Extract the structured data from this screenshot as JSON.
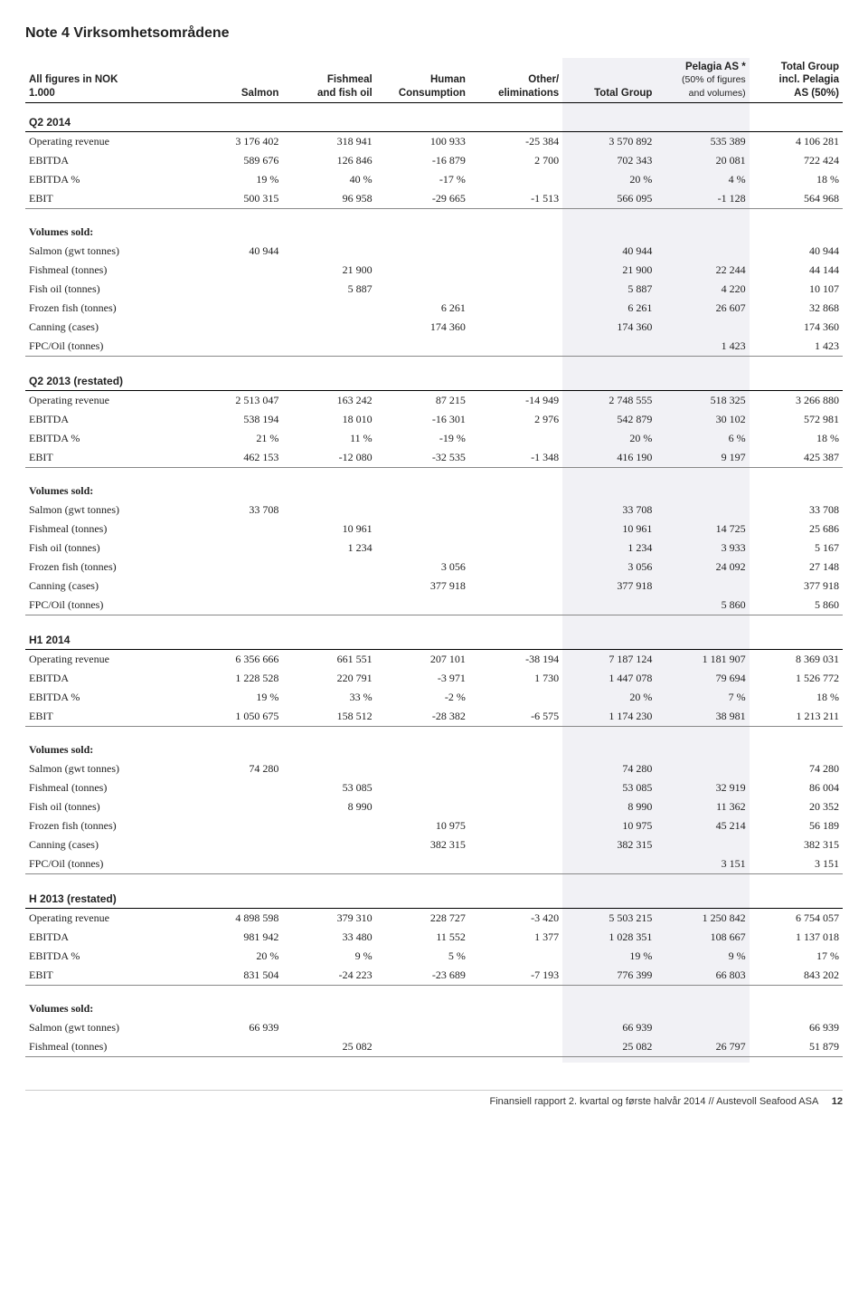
{
  "title": "Note 4   Virksomhetsområdene",
  "header": {
    "col0a": "All figures in NOK",
    "col0b": "1.000",
    "col1": "Salmon",
    "col2a": "Fishmeal",
    "col2b": "and fish oil",
    "col3a": "Human",
    "col3b": "Consumption",
    "col4a": "Other/",
    "col4b": "eliminations",
    "col5": "Total Group",
    "col6a": "Pelagia AS *",
    "col6b": "(50% of figures",
    "col6c": "and volumes)",
    "col7a": "Total Group",
    "col7b": "incl. Pelagia",
    "col7c": "AS (50%)"
  },
  "row_labels": {
    "op_rev": "Operating revenue",
    "ebitda": "EBITDA",
    "ebitda_pct": "EBITDA %",
    "ebit": "EBIT",
    "vol_sold": "Volumes sold:",
    "salmon": "Salmon (gwt tonnes)",
    "fishmeal": "Fishmeal (tonnes)",
    "fishoil": "Fish oil (tonnes)",
    "frozen": "Frozen fish (tonnes)",
    "canning": "Canning (cases)",
    "fpc": "FPC/Oil (tonnes)"
  },
  "sections": {
    "q2_2014": {
      "title": "Q2 2014",
      "op_rev": [
        "3 176 402",
        "318 941",
        "100 933",
        "-25 384",
        "3 570 892",
        "535 389",
        "4 106 281"
      ],
      "ebitda": [
        "589 676",
        "126 846",
        "-16 879",
        "2 700",
        "702 343",
        "20 081",
        "722 424"
      ],
      "ebitda_pct": [
        "19 %",
        "40 %",
        "-17 %",
        "",
        "20 %",
        "4 %",
        "18 %"
      ],
      "ebit": [
        "500 315",
        "96 958",
        "-29 665",
        "-1 513",
        "566 095",
        "-1 128",
        "564 968"
      ],
      "salmon": [
        "40 944",
        "",
        "",
        "",
        "40 944",
        "",
        "40 944"
      ],
      "fishmeal": [
        "",
        "21 900",
        "",
        "",
        "21 900",
        "22 244",
        "44 144"
      ],
      "fishoil": [
        "",
        "5 887",
        "",
        "",
        "5 887",
        "4 220",
        "10 107"
      ],
      "frozen": [
        "",
        "",
        "6 261",
        "",
        "6 261",
        "26 607",
        "32 868"
      ],
      "canning": [
        "",
        "",
        "174 360",
        "",
        "174 360",
        "",
        "174 360"
      ],
      "fpc": [
        "",
        "",
        "",
        "",
        "",
        "1 423",
        "1 423"
      ]
    },
    "q2_2013": {
      "title": "Q2 2013 (restated)",
      "op_rev": [
        "2 513 047",
        "163 242",
        "87 215",
        "-14 949",
        "2 748 555",
        "518 325",
        "3 266 880"
      ],
      "ebitda": [
        "538 194",
        "18 010",
        "-16 301",
        "2 976",
        "542 879",
        "30 102",
        "572 981"
      ],
      "ebitda_pct": [
        "21 %",
        "11 %",
        "-19 %",
        "",
        "20 %",
        "6 %",
        "18 %"
      ],
      "ebit": [
        "462 153",
        "-12 080",
        "-32 535",
        "-1 348",
        "416 190",
        "9 197",
        "425 387"
      ],
      "salmon": [
        "33 708",
        "",
        "",
        "",
        "33 708",
        "",
        "33 708"
      ],
      "fishmeal": [
        "",
        "10 961",
        "",
        "",
        "10 961",
        "14 725",
        "25 686"
      ],
      "fishoil": [
        "",
        "1 234",
        "",
        "",
        "1 234",
        "3 933",
        "5 167"
      ],
      "frozen": [
        "",
        "",
        "3 056",
        "",
        "3 056",
        "24 092",
        "27 148"
      ],
      "canning": [
        "",
        "",
        "377 918",
        "",
        "377 918",
        "",
        "377 918"
      ],
      "fpc": [
        "",
        "",
        "",
        "",
        "",
        "5 860",
        "5 860"
      ]
    },
    "h1_2014": {
      "title": "H1 2014",
      "op_rev": [
        "6 356 666",
        "661 551",
        "207 101",
        "-38 194",
        "7 187 124",
        "1 181 907",
        "8 369 031"
      ],
      "ebitda": [
        "1 228 528",
        "220 791",
        "-3 971",
        "1 730",
        "1 447 078",
        "79 694",
        "1 526 772"
      ],
      "ebitda_pct": [
        "19 %",
        "33 %",
        "-2 %",
        "",
        "20 %",
        "7 %",
        "18 %"
      ],
      "ebit": [
        "1 050 675",
        "158 512",
        "-28 382",
        "-6 575",
        "1 174 230",
        "38 981",
        "1 213 211"
      ],
      "salmon": [
        "74 280",
        "",
        "",
        "",
        "74 280",
        "",
        "74 280"
      ],
      "fishmeal": [
        "",
        "53 085",
        "",
        "",
        "53 085",
        "32 919",
        "86 004"
      ],
      "fishoil": [
        "",
        "8 990",
        "",
        "",
        "8 990",
        "11 362",
        "20 352"
      ],
      "frozen": [
        "",
        "",
        "10 975",
        "",
        "10 975",
        "45 214",
        "56 189"
      ],
      "canning": [
        "",
        "",
        "382 315",
        "",
        "382 315",
        "",
        "382 315"
      ],
      "fpc": [
        "",
        "",
        "",
        "",
        "",
        "3 151",
        "3 151"
      ]
    },
    "h_2013": {
      "title": "H 2013 (restated)",
      "op_rev": [
        "4 898 598",
        "379 310",
        "228 727",
        "-3 420",
        "5 503 215",
        "1 250 842",
        "6 754 057"
      ],
      "ebitda": [
        "981 942",
        "33 480",
        "11 552",
        "1 377",
        "1 028 351",
        "108 667",
        "1 137 018"
      ],
      "ebitda_pct": [
        "20 %",
        "9 %",
        "5 %",
        "",
        "19 %",
        "9 %",
        "17 %"
      ],
      "ebit": [
        "831 504",
        "-24 223",
        "-23 689",
        "-7 193",
        "776 399",
        "66 803",
        "843 202"
      ],
      "salmon": [
        "66 939",
        "",
        "",
        "",
        "66 939",
        "",
        "66 939"
      ],
      "fishmeal": [
        "",
        "25 082",
        "",
        "",
        "25 082",
        "26 797",
        "51 879"
      ]
    }
  },
  "footer": {
    "text": "Finansiell rapport 2. kvartal og første halvår 2014  //  Austevoll Seafood ASA",
    "page": "12"
  },
  "colors": {
    "shade": "#f1f1f5",
    "text": "#222222",
    "line_dark": "#000000",
    "line_light": "#888888"
  }
}
